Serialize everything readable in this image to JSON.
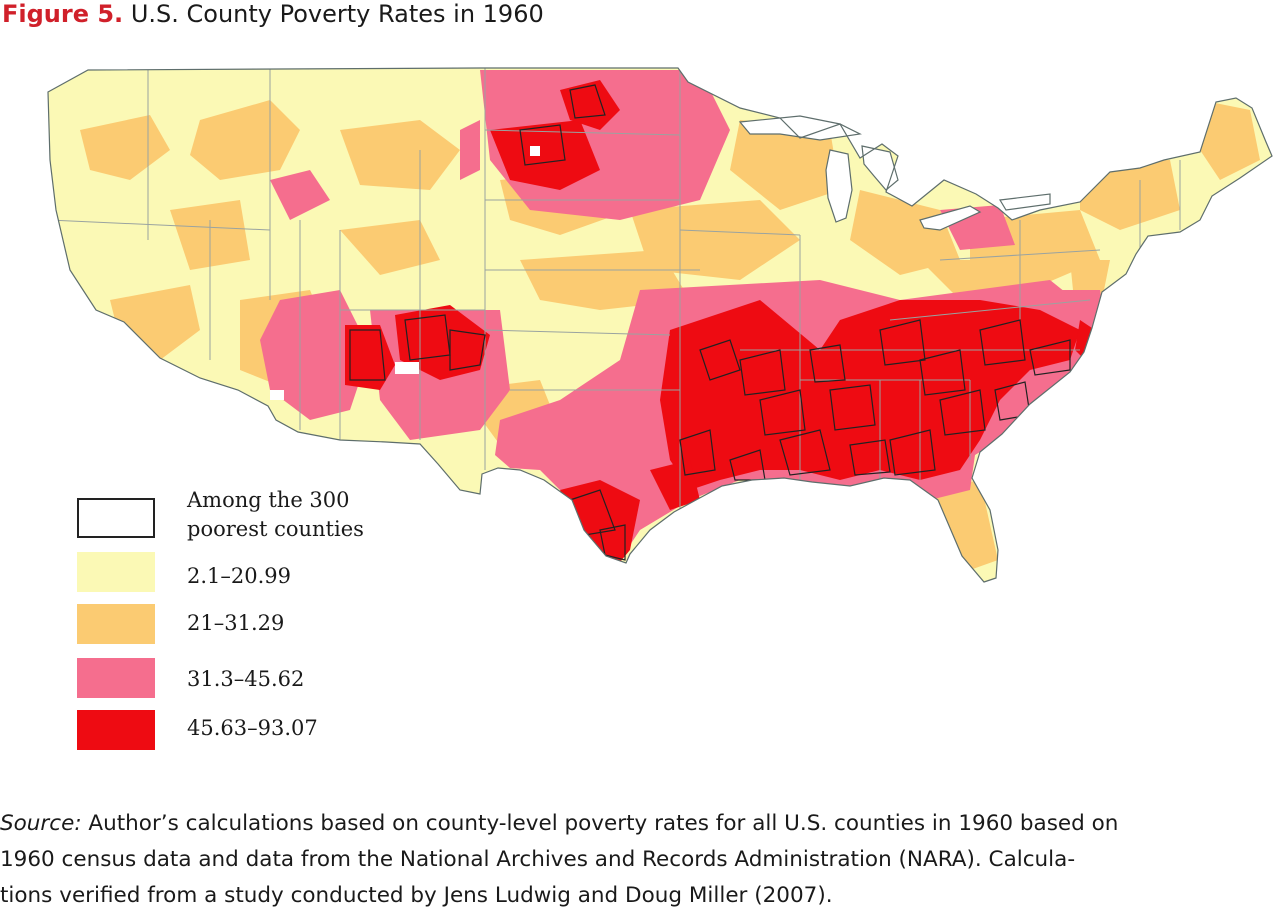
{
  "title": {
    "label": "Figure 5.",
    "text": "U.S. County Poverty Rates in 1960"
  },
  "legend": {
    "outline_item": {
      "label_line1": "Among the 300",
      "label_line2": "poorest counties",
      "stroke": "#222222"
    },
    "items": [
      {
        "label": "2.1–20.99",
        "color": "#fbf9b5"
      },
      {
        "label": "21–31.29",
        "color": "#fbcb72"
      },
      {
        "label": "31.3–45.62",
        "color": "#f56e8e"
      },
      {
        "label": "45.63–93.07",
        "color": "#ee0b12"
      }
    ]
  },
  "source": {
    "prefix": "Source:",
    "line1": " Author’s calculations based on county-level poverty rates for all U.S. counties in 1960 based on",
    "line2": "1960 census data and data from the National Archives and Records Administration (NARA). Calcula-",
    "line3": "tions verified from a study conducted by Jens Ludwig and Doug Miller (2007)."
  },
  "map": {
    "background_color": "#fbf9b5",
    "outline_color": "#222222",
    "border_color": "#9aa3a0"
  }
}
